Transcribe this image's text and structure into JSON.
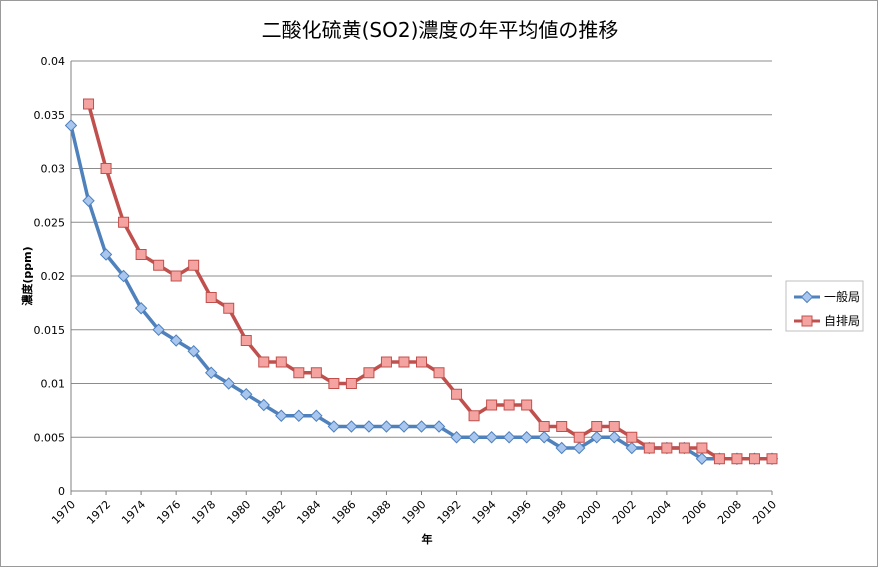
{
  "chart_data": {
    "type": "line",
    "title": "二酸化硫黄(SO2)濃度の年平均値の推移",
    "xlabel": "年",
    "ylabel": "濃度(ppm)",
    "xlim": [
      1970,
      2010
    ],
    "ylim": [
      0,
      0.04
    ],
    "x_ticks": [
      "1970",
      "1972",
      "1974",
      "1976",
      "1978",
      "1980",
      "1982",
      "1984",
      "1986",
      "1988",
      "1990",
      "1992",
      "1994",
      "1996",
      "1998",
      "2000",
      "2002",
      "2004",
      "2006",
      "2008",
      "2010"
    ],
    "y_ticks": [
      "0",
      "0.005",
      "0.01",
      "0.015",
      "0.02",
      "0.025",
      "0.03",
      "0.035",
      "0.04"
    ],
    "grid": "horizontal",
    "legend_position": "right",
    "series": [
      {
        "name": "一般局",
        "color": "#4f81bd",
        "marker": "diamond",
        "x": [
          1970,
          1971,
          1972,
          1973,
          1974,
          1975,
          1976,
          1977,
          1978,
          1979,
          1980,
          1981,
          1982,
          1983,
          1984,
          1985,
          1986,
          1987,
          1988,
          1989,
          1990,
          1991,
          1992,
          1993,
          1994,
          1995,
          1996,
          1997,
          1998,
          1999,
          2000,
          2001,
          2002,
          2003,
          2004,
          2005,
          2006,
          2007,
          2008,
          2009,
          2010
        ],
        "values": [
          0.034,
          0.027,
          0.022,
          0.02,
          0.017,
          0.015,
          0.014,
          0.013,
          0.011,
          0.01,
          0.009,
          0.008,
          0.007,
          0.007,
          0.007,
          0.006,
          0.006,
          0.006,
          0.006,
          0.006,
          0.006,
          0.006,
          0.005,
          0.005,
          0.005,
          0.005,
          0.005,
          0.005,
          0.004,
          0.004,
          0.005,
          0.005,
          0.004,
          0.004,
          0.004,
          0.004,
          0.003,
          0.003,
          0.003,
          0.003,
          0.003
        ]
      },
      {
        "name": "自排局",
        "color": "#c0504d",
        "marker": "square",
        "x": [
          1971,
          1972,
          1973,
          1974,
          1975,
          1976,
          1977,
          1978,
          1979,
          1980,
          1981,
          1982,
          1983,
          1984,
          1985,
          1986,
          1987,
          1988,
          1989,
          1990,
          1991,
          1992,
          1993,
          1994,
          1995,
          1996,
          1997,
          1998,
          1999,
          2000,
          2001,
          2002,
          2003,
          2004,
          2005,
          2006,
          2007,
          2008,
          2009,
          2010
        ],
        "values": [
          0.036,
          0.03,
          0.025,
          0.022,
          0.021,
          0.02,
          0.021,
          0.018,
          0.017,
          0.014,
          0.012,
          0.012,
          0.011,
          0.011,
          0.01,
          0.01,
          0.011,
          0.012,
          0.012,
          0.012,
          0.011,
          0.009,
          0.007,
          0.008,
          0.008,
          0.008,
          0.006,
          0.006,
          0.005,
          0.006,
          0.006,
          0.005,
          0.004,
          0.004,
          0.004,
          0.004,
          0.003,
          0.003,
          0.003,
          0.003
        ]
      }
    ]
  }
}
